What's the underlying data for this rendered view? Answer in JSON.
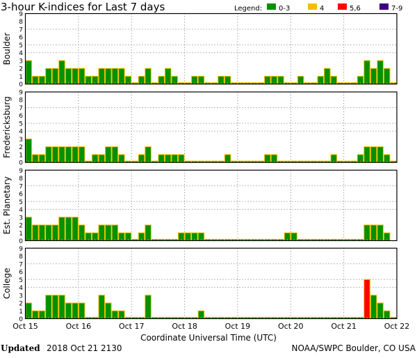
{
  "colors": {
    "k0_3": "#009100",
    "k4": "#f0c000",
    "k5_6": "#ff0000",
    "k7_9": "#400080",
    "outline": "#f0c000"
  },
  "footer": {
    "updated_label": "Updated",
    "updated_value": "2018 Oct 21 2130",
    "source": "NOAA/SWPC Boulder, CO USA"
  },
  "chart_data": {
    "type": "bar",
    "title": "3-hour K-indices for Last 7 days",
    "legend": {
      "label": "Legend:",
      "placement": "top-right",
      "entries": [
        {
          "label": "0-3",
          "color": "#009100"
        },
        {
          "label": "4",
          "color": "#f0c000"
        },
        {
          "label": "5,6",
          "color": "#ff0000"
        },
        {
          "label": "7-9",
          "color": "#400080"
        }
      ]
    },
    "xlabel": "Coordinate Universal Time (UTC)",
    "x_ticks": [
      "Oct 15",
      "Oct 16",
      "Oct 17",
      "Oct 18",
      "Oct 19",
      "Oct 20",
      "Oct 21",
      "Oct 22"
    ],
    "y_ticks": [
      "0",
      "1",
      "2",
      "3",
      "4",
      "5",
      "6",
      "7",
      "8",
      "9"
    ],
    "ylim": [
      0,
      9
    ],
    "gridlines_y": [
      4,
      5,
      7
    ],
    "bars_per_day": 8,
    "panels": [
      {
        "ylabel": "Boulder",
        "values": [
          3,
          1,
          1,
          2,
          2,
          3,
          2,
          2,
          2,
          1,
          1,
          2,
          2,
          2,
          2,
          1,
          0,
          1,
          2,
          0,
          1,
          2,
          1,
          0,
          0,
          1,
          1,
          0,
          0,
          1,
          1,
          0,
          0,
          0,
          0,
          0,
          1,
          1,
          1,
          0,
          0,
          1,
          0,
          0,
          1,
          2,
          1,
          0,
          0,
          0,
          1,
          3,
          2,
          3,
          2,
          0
        ]
      },
      {
        "ylabel": "Fredericksburg",
        "values": [
          3,
          1,
          1,
          2,
          2,
          2,
          2,
          2,
          2,
          0,
          1,
          1,
          2,
          2,
          1,
          0,
          0,
          1,
          2,
          0,
          1,
          1,
          1,
          1,
          0,
          0,
          0,
          0,
          0,
          0,
          1,
          0,
          0,
          0,
          0,
          0,
          1,
          1,
          0,
          0,
          0,
          0,
          0,
          0,
          0,
          0,
          1,
          0,
          0,
          0,
          1,
          2,
          2,
          2,
          1,
          0
        ]
      },
      {
        "ylabel": "Est. Planetary",
        "values": [
          3,
          2,
          2,
          2,
          2,
          3,
          3,
          3,
          2,
          1,
          1,
          2,
          2,
          2,
          1,
          1,
          0,
          1,
          2,
          0,
          0,
          0,
          0,
          1,
          1,
          1,
          1,
          0,
          0,
          0,
          0,
          0,
          0,
          0,
          0,
          0,
          0,
          0,
          0,
          1,
          1,
          0,
          0,
          0,
          0,
          0,
          0,
          0,
          0,
          0,
          0,
          2,
          2,
          2,
          1,
          null
        ]
      },
      {
        "ylabel": "College",
        "values": [
          2,
          1,
          1,
          3,
          3,
          3,
          2,
          2,
          2,
          0,
          0,
          3,
          2,
          1,
          1,
          0,
          0,
          0,
          3,
          0,
          0,
          0,
          0,
          0,
          0,
          0,
          1,
          0,
          0,
          0,
          0,
          0,
          0,
          0,
          0,
          0,
          0,
          0,
          0,
          0,
          0,
          0,
          0,
          0,
          0,
          0,
          0,
          0,
          0,
          0,
          0,
          5,
          3,
          2,
          1,
          0
        ]
      }
    ]
  }
}
